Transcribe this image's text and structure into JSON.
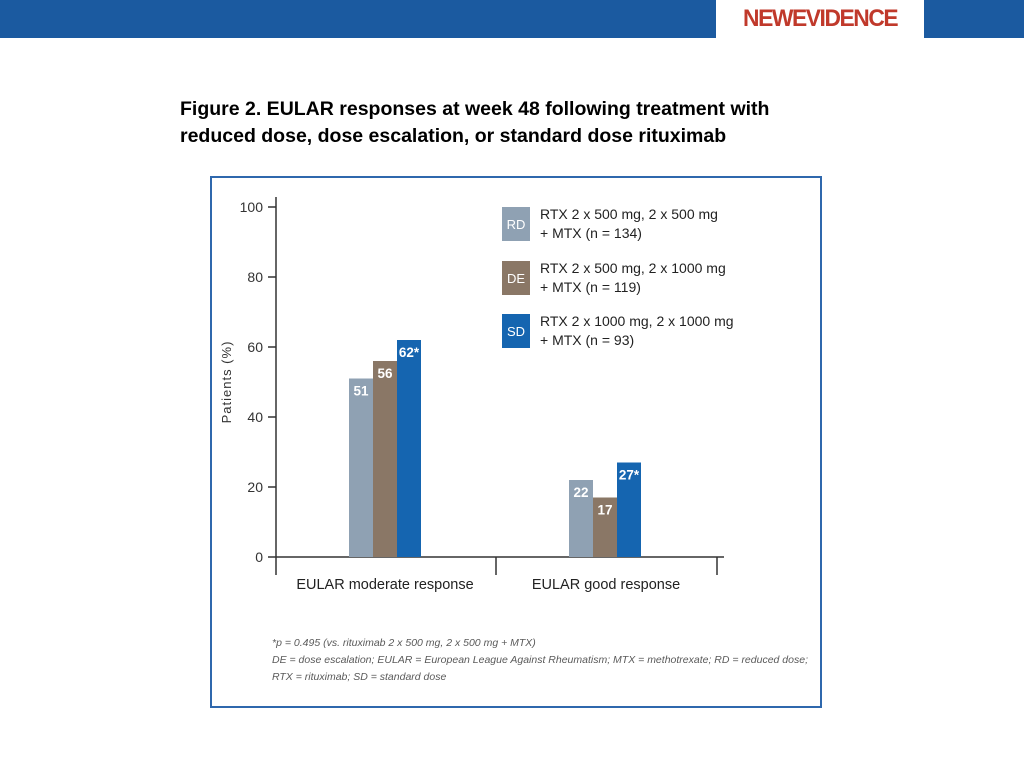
{
  "header": {
    "logo": {
      "prefix": "NEW",
      "suffix": "EVIDENCE",
      "color": "#c0392b"
    },
    "bar_color": "#1b5aa0"
  },
  "title": {
    "line1": "Figure 2. EULAR responses at week 48 following treatment with",
    "line2": "reduced dose, dose escalation, or standard dose rituximab"
  },
  "chart_data": {
    "type": "bar",
    "categories": [
      "EULAR moderate response",
      "EULAR good response"
    ],
    "ylabel": "Patients (%)",
    "ylim": [
      0,
      100
    ],
    "yticks": [
      0,
      20,
      40,
      60,
      80,
      100
    ],
    "grid": false,
    "legend_position": "top-right",
    "series": [
      {
        "name": "RTX 2 x 500 mg, 2 x 500 mg + MTX (n = 134)",
        "badge": "RD",
        "legend_line1": "RTX 2 x 500 mg, 2 x 500 mg",
        "legend_line2": "+ MTX (n = 134)",
        "color": "#8fa1b3",
        "values": [
          51,
          22
        ],
        "labels": [
          "51",
          "22"
        ]
      },
      {
        "name": "RTX 2 x 500 mg, 2 x 1000 mg + MTX (n = 119)",
        "badge": "DE",
        "legend_line1": "RTX 2 x 500 mg, 2 x 1000 mg",
        "legend_line2": "+ MTX (n = 119)",
        "color": "#8a7766",
        "values": [
          56,
          17
        ],
        "labels": [
          "56",
          "17"
        ]
      },
      {
        "name": "RTX 2 x 1000 mg, 2 x 1000 mg + MTX (n = 93)",
        "badge": "SD",
        "legend_line1": "RTX 2 x 1000 mg, 2 x 1000 mg",
        "legend_line2": "+ MTX (n = 93)",
        "color": "#1565b0",
        "values": [
          62,
          27
        ],
        "labels": [
          "62*",
          "27*"
        ]
      }
    ]
  },
  "footnotes": {
    "line1": "*p = 0.495 (vs. rituximab 2 x 500 mg, 2 x 500 mg + MTX)",
    "line2": "DE = dose escalation; EULAR = European League Against Rheumatism; MTX = methotrexate; RD = reduced dose;",
    "line3": "RTX = rituximab; SD = standard dose"
  }
}
